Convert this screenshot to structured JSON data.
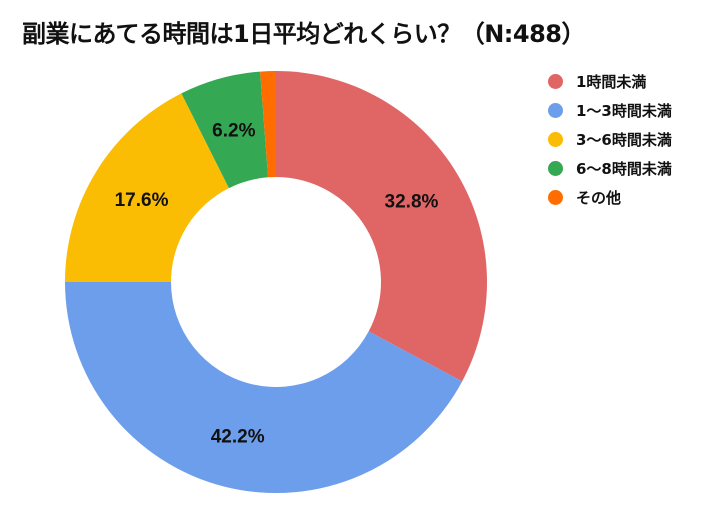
{
  "title": "副業にあてる時間は1日平均どれくらい？（N:488）",
  "chart_data": {
    "type": "pie",
    "variant": "donut",
    "title": "副業にあてる時間は1日平均どれくらい？（N:488）",
    "n": 488,
    "categories": [
      "1時間未満",
      "1〜3時間未満",
      "3〜6時間未満",
      "6〜8時間未満",
      "その他"
    ],
    "values": [
      32.8,
      42.2,
      17.6,
      6.2,
      1.2
    ],
    "value_labels": [
      "32.8%",
      "42.2%",
      "17.6%",
      "6.2%",
      ""
    ],
    "colors": [
      "#e06666",
      "#6d9eeb",
      "#fbbc04",
      "#34a853",
      "#ff6d01"
    ],
    "start_angle": "12 o'clock, clockwise",
    "legend_position": "right"
  },
  "legend": {
    "items": [
      {
        "label": "1時間未満",
        "color": "#e06666"
      },
      {
        "label": "1〜3時間未満",
        "color": "#6d9eeb"
      },
      {
        "label": "3〜6時間未満",
        "color": "#fbbc04"
      },
      {
        "label": "6〜8時間未満",
        "color": "#34a853"
      },
      {
        "label": "その他",
        "color": "#ff6d01"
      }
    ]
  }
}
